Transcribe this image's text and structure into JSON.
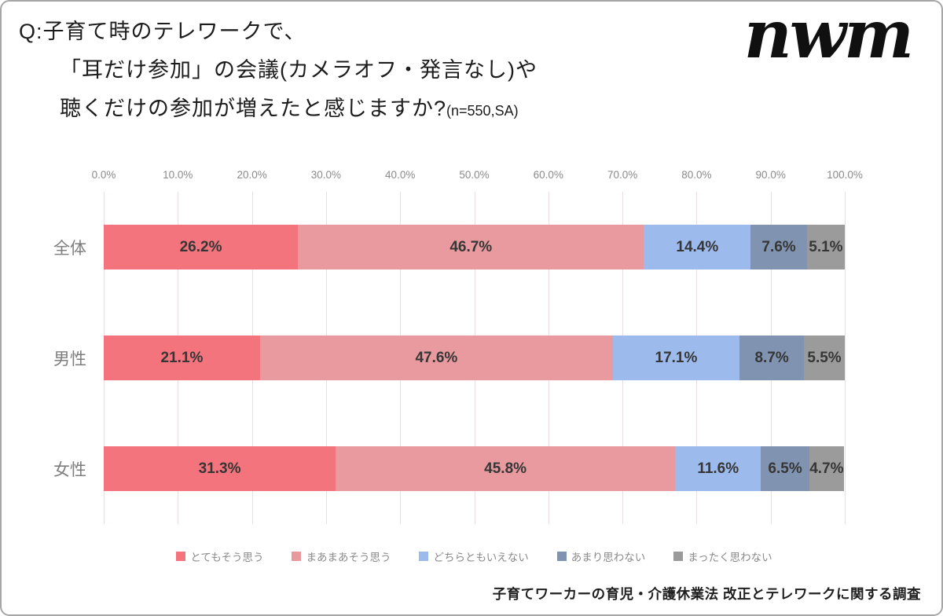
{
  "page": {
    "background": "#ffffff",
    "border_color": "#a6a6a6"
  },
  "header": {
    "title_line1": "Q:子育て時のテレワークで、",
    "title_line2": "「耳だけ参加」の会議(カメラオフ・発言なし)や",
    "title_line3": "聴くだけの参加が増えたと感じますか?",
    "title_note": "(n=550,SA)",
    "logo_text": "nwm"
  },
  "chart_data": {
    "type": "bar",
    "orientation": "horizontal",
    "stacked": true,
    "unit": "%",
    "xlim": [
      0,
      100
    ],
    "grid": true,
    "legend_position": "bottom",
    "x_ticks": [
      "0.0%",
      "10.0%",
      "20.0%",
      "30.0%",
      "40.0%",
      "50.0%",
      "60.0%",
      "70.0%",
      "80.0%",
      "90.0%",
      "100.0%"
    ],
    "categories": [
      "全体",
      "男性",
      "女性"
    ],
    "series": [
      {
        "name": "とてもそう思う",
        "color": "#F4747D",
        "values": [
          26.2,
          21.1,
          31.3
        ]
      },
      {
        "name": "まあまあそう思う",
        "color": "#E89A9E",
        "values": [
          46.7,
          47.6,
          45.8
        ]
      },
      {
        "name": "どちらともいえない",
        "color": "#9DBAEC",
        "values": [
          14.4,
          17.1,
          11.6
        ]
      },
      {
        "name": "あまり思わない",
        "color": "#8094B1",
        "values": [
          7.6,
          8.7,
          6.5
        ]
      },
      {
        "name": "まったく思わない",
        "color": "#9B9B9B",
        "values": [
          5.1,
          5.5,
          4.7
        ]
      }
    ],
    "value_label_format": "{value}%"
  },
  "footer": {
    "source": "子育てワーカーの育児・介護休業法 改正とテレワークに関する調査"
  }
}
